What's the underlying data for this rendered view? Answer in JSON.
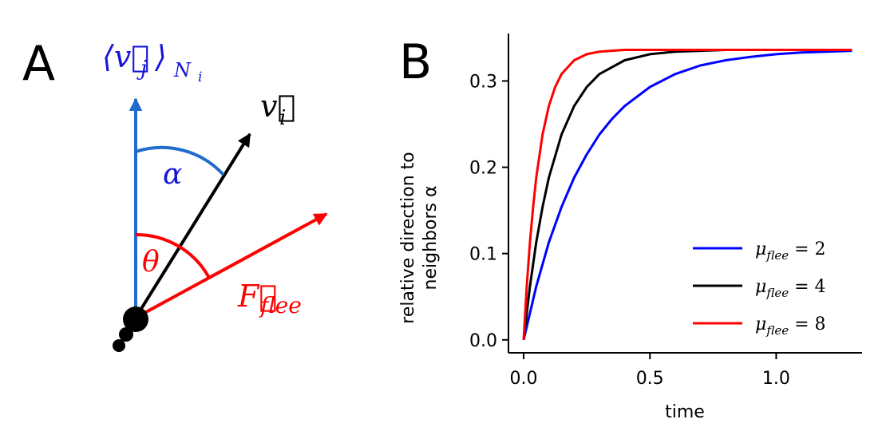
{
  "panel_a": {
    "letter": "A",
    "neighbor_vec_label": "⟨v⃗j⟩Ni",
    "neighbor_vec_main": "⟨v⃗",
    "neighbor_vec_sub_j": "j",
    "neighbor_vec_close": "⟩",
    "neighbor_vec_sub_n": "N",
    "neighbor_vec_sub_i": "i",
    "focal_vec_main": "v⃗",
    "focal_vec_sub": "i",
    "alpha_label": "α",
    "theta_label": "θ",
    "flee_main": "F⃗",
    "flee_sub": "flee",
    "colors": {
      "neighbor": "#1f6ccc",
      "alpha_text": "#1515d8",
      "flee": "#ff0000",
      "focal": "#000000"
    }
  },
  "panel_b": {
    "letter": "B"
  },
  "chart_data": {
    "type": "line",
    "xlabel": "time",
    "ylabel_line1": "relative direction to",
    "ylabel_line2": "neighbors α",
    "xlim": [
      -0.06,
      1.34
    ],
    "ylim": [
      -0.015,
      0.355
    ],
    "xticks": [
      0.0,
      0.5,
      1.0
    ],
    "xtick_labels": [
      "0.0",
      "0.5",
      "1.0"
    ],
    "yticks": [
      0.0,
      0.1,
      0.2,
      0.3
    ],
    "ytick_labels": [
      "0.0",
      "0.1",
      "0.2",
      "0.3"
    ],
    "legend_position": "lower-right",
    "series": [
      {
        "name": "μflee = 2",
        "color": "#0000ff",
        "x": [
          0,
          0.05,
          0.1,
          0.15,
          0.2,
          0.25,
          0.3,
          0.35,
          0.4,
          0.5,
          0.6,
          0.7,
          0.8,
          0.9,
          1.0,
          1.1,
          1.2,
          1.3
        ],
        "y": [
          0,
          0.062,
          0.113,
          0.154,
          0.188,
          0.215,
          0.238,
          0.256,
          0.271,
          0.293,
          0.308,
          0.318,
          0.324,
          0.328,
          0.331,
          0.333,
          0.334,
          0.335
        ]
      },
      {
        "name": "μflee = 4",
        "color": "#000000",
        "x": [
          0,
          0.025,
          0.05,
          0.075,
          0.1,
          0.15,
          0.2,
          0.25,
          0.3,
          0.4,
          0.5,
          0.6,
          0.7,
          0.8,
          1.0,
          1.3
        ],
        "y": [
          0,
          0.062,
          0.113,
          0.154,
          0.188,
          0.238,
          0.271,
          0.293,
          0.308,
          0.324,
          0.331,
          0.334,
          0.335,
          0.336,
          0.336,
          0.336
        ]
      },
      {
        "name": "μflee = 8",
        "color": "#ff0000",
        "x": [
          0,
          0.0125,
          0.025,
          0.0375,
          0.05,
          0.075,
          0.1,
          0.125,
          0.15,
          0.2,
          0.25,
          0.3,
          0.4,
          0.6,
          1.0,
          1.3
        ],
        "y": [
          0,
          0.062,
          0.113,
          0.154,
          0.188,
          0.238,
          0.271,
          0.293,
          0.308,
          0.324,
          0.331,
          0.334,
          0.336,
          0.336,
          0.336,
          0.336
        ]
      }
    ],
    "legend": [
      {
        "symbol": "μ",
        "sub": "flee",
        "eq": " = 2",
        "color": "#0000ff"
      },
      {
        "symbol": "μ",
        "sub": "flee",
        "eq": " = 4",
        "color": "#000000"
      },
      {
        "symbol": "μ",
        "sub": "flee",
        "eq": " = 8",
        "color": "#ff0000"
      }
    ]
  }
}
